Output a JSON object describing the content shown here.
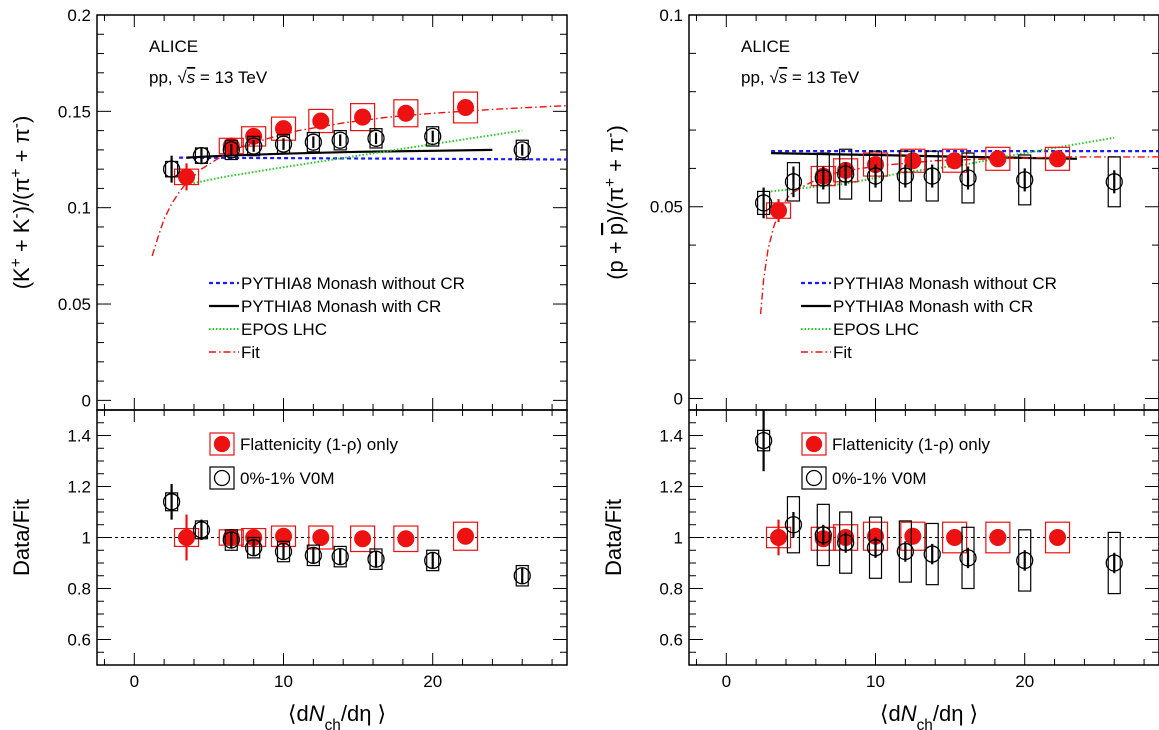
{
  "chart_data": [
    {
      "type": "scatter",
      "panel": "left",
      "experiment": "ALICE",
      "system": "pp,",
      "energy": "= 13 TeV",
      "top": {
        "ylabel": "(K⁺ + K⁻)/(π⁺ + π⁻)",
        "xlim": [
          -2.5,
          29
        ],
        "ylim": [
          -0.005,
          0.2
        ],
        "yticks": [
          0,
          0.05,
          0.1,
          0.15,
          0.2
        ],
        "ytick_labels": [
          "0",
          "0.05",
          "0.1",
          "0.15",
          "0.2"
        ],
        "series": [
          {
            "name": "Flattenicity (1-ρ) only",
            "kind": "red-points",
            "x": [
              3.5,
              6.5,
              8.0,
              10.0,
              12.5,
              15.3,
              18.2,
              22.2
            ],
            "y": [
              0.116,
              0.132,
              0.137,
              0.141,
              0.145,
              0.147,
              0.149,
              0.152
            ],
            "yerr": [
              0.007,
              0.003,
              0.002,
              0.002,
              0.002,
              0.002,
              0.002,
              0.002
            ],
            "ysys": [
              0.004,
              0.004,
              0.005,
              0.006,
              0.006,
              0.007,
              0.007,
              0.008
            ]
          },
          {
            "name": "0%-1% V0M",
            "kind": "open-circles",
            "x": [
              2.5,
              4.5,
              6.5,
              8.0,
              10.0,
              12.0,
              13.8,
              16.2,
              20.0,
              26.0
            ],
            "y": [
              0.12,
              0.127,
              0.13,
              0.132,
              0.133,
              0.134,
              0.135,
              0.136,
              0.137,
              0.13
            ],
            "yerr": [
              0.007,
              0.004,
              0.003,
              0.003,
              0.003,
              0.003,
              0.003,
              0.003,
              0.003,
              0.003
            ],
            "ysys": [
              0.004,
              0.004,
              0.005,
              0.005,
              0.005,
              0.005,
              0.005,
              0.005,
              0.005,
              0.005
            ]
          },
          {
            "name": "PYTHIA8 Monash without CR",
            "kind": "blue-dashed",
            "x": [
              3,
              29
            ],
            "y": [
              0.126,
              0.125
            ]
          },
          {
            "name": "PYTHIA8 Monash with CR",
            "kind": "black-solid",
            "x": [
              3.5,
              6,
              10,
              15,
              20,
              24
            ],
            "y": [
              0.126,
              0.127,
              0.128,
              0.129,
              0.1295,
              0.13
            ]
          },
          {
            "name": "EPOS LHC",
            "kind": "green-dotted",
            "x": [
              3.5,
              6,
              10,
              15,
              20,
              26
            ],
            "y": [
              0.112,
              0.116,
              0.121,
              0.127,
              0.133,
              0.14
            ]
          },
          {
            "name": "Fit",
            "kind": "red-dashdot",
            "x": [
              1.2,
              1.6,
              2.0,
              2.5,
              3.0,
              3.5,
              4.5,
              5.5,
              7,
              9,
              11,
              14,
              17,
              20,
              24,
              29
            ],
            "y": [
              0.075,
              0.085,
              0.094,
              0.102,
              0.108,
              0.113,
              0.12,
              0.125,
              0.131,
              0.136,
              0.14,
              0.144,
              0.147,
              0.149,
              0.151,
              0.153
            ]
          }
        ]
      },
      "bottom": {
        "ylabel": "Data/Fit",
        "xlabel": "⟨dN_ch/dη⟩",
        "xlim": [
          -2.5,
          29
        ],
        "ylim": [
          0.5,
          1.5
        ],
        "yticks": [
          0.6,
          0.8,
          1.0,
          1.2,
          1.4
        ],
        "ytick_labels": [
          "0.6",
          "0.8",
          "1",
          "1.2",
          "1.4"
        ],
        "xticks": [
          0,
          10,
          20
        ],
        "xtick_labels": [
          "0",
          "10",
          "20"
        ],
        "reference_line": 1.0,
        "series": [
          {
            "name": "Flattenicity (1-ρ) only",
            "kind": "red-points",
            "x": [
              3.5,
              6.5,
              8.0,
              10.0,
              12.5,
              15.3,
              18.2,
              22.2
            ],
            "y": [
              1.0,
              1.0,
              1.0,
              1.005,
              1.0,
              0.995,
              0.995,
              1.005
            ],
            "yerr": [
              0.09,
              0.02,
              0.02,
              0.02,
              0.02,
              0.02,
              0.02,
              0.02
            ],
            "ysys": [
              0.035,
              0.03,
              0.035,
              0.04,
              0.045,
              0.05,
              0.05,
              0.055
            ]
          },
          {
            "name": "0%-1% V0M",
            "kind": "open-circles",
            "x": [
              2.5,
              4.5,
              6.5,
              8.0,
              10.0,
              12.0,
              13.8,
              16.2,
              20.0,
              26.0
            ],
            "y": [
              1.14,
              1.03,
              0.99,
              0.96,
              0.945,
              0.93,
              0.925,
              0.915,
              0.91,
              0.85
            ],
            "yerr": [
              0.07,
              0.04,
              0.03,
              0.03,
              0.03,
              0.03,
              0.03,
              0.03,
              0.03,
              0.03
            ],
            "ysys": [
              0.035,
              0.035,
              0.04,
              0.04,
              0.04,
              0.04,
              0.04,
              0.04,
              0.04,
              0.04
            ]
          }
        ]
      },
      "legend_top": [
        "PYTHIA8 Monash without CR",
        "PYTHIA8 Monash with CR",
        "EPOS LHC",
        "Fit"
      ],
      "legend_bottom": [
        "Flattenicity (1-ρ) only",
        "0%-1% V0M"
      ]
    },
    {
      "type": "scatter",
      "panel": "right",
      "experiment": "ALICE",
      "system": "pp,",
      "energy": "= 13 TeV",
      "top": {
        "ylabel": "(p + p̅)/(π⁺ + π⁻)",
        "xlim": [
          -2.5,
          29
        ],
        "ylim": [
          -0.003,
          0.1
        ],
        "yticks": [
          0,
          0.05,
          0.1
        ],
        "ytick_labels": [
          "0",
          "0.05",
          "0.1"
        ],
        "series": [
          {
            "name": "Flattenicity (1-ρ) only",
            "kind": "red-points",
            "x": [
              3.5,
              6.5,
              8.0,
              10.0,
              12.5,
              15.3,
              18.2,
              22.2
            ],
            "y": [
              0.049,
              0.058,
              0.0595,
              0.061,
              0.062,
              0.062,
              0.0625,
              0.0625
            ],
            "yerr": [
              0.003,
              0.002,
              0.0015,
              0.0015,
              0.0015,
              0.0015,
              0.0015,
              0.0015
            ],
            "ysys": [
              0.002,
              0.0025,
              0.003,
              0.003,
              0.003,
              0.003,
              0.003,
              0.003
            ]
          },
          {
            "name": "0%-1% V0M",
            "kind": "open-circles",
            "x": [
              2.5,
              4.5,
              6.5,
              8.0,
              10.0,
              12.0,
              13.8,
              16.2,
              20.0,
              26.0
            ],
            "y": [
              0.051,
              0.0565,
              0.0575,
              0.0585,
              0.058,
              0.058,
              0.058,
              0.0575,
              0.057,
              0.0565
            ],
            "yerr": [
              0.004,
              0.004,
              0.003,
              0.003,
              0.003,
              0.003,
              0.003,
              0.003,
              0.003,
              0.003
            ],
            "ysys": [
              0.003,
              0.005,
              0.0065,
              0.0065,
              0.0065,
              0.0065,
              0.0065,
              0.0065,
              0.0065,
              0.0065
            ]
          },
          {
            "name": "PYTHIA8 Monash without CR",
            "kind": "blue-dashed",
            "x": [
              3,
              29
            ],
            "y": [
              0.0645,
              0.0645
            ]
          },
          {
            "name": "PYTHIA8 Monash with CR",
            "kind": "black-solid",
            "x": [
              3,
              10,
              16,
              23.5
            ],
            "y": [
              0.064,
              0.0635,
              0.063,
              0.0625
            ]
          },
          {
            "name": "EPOS LHC",
            "kind": "green-dotted",
            "x": [
              3,
              8,
              12,
              16,
              20,
              26
            ],
            "y": [
              0.054,
              0.056,
              0.059,
              0.061,
              0.064,
              0.068
            ]
          },
          {
            "name": "Fit",
            "kind": "red-dashdot",
            "x": [
              2.3,
              2.5,
              2.8,
              3.2,
              3.6,
              4.2,
              5.0,
              6,
              7.5,
              9,
              11,
              14,
              18,
              23,
              29
            ],
            "y": [
              0.022,
              0.031,
              0.039,
              0.045,
              0.049,
              0.053,
              0.055,
              0.057,
              0.059,
              0.06,
              0.061,
              0.062,
              0.0625,
              0.063,
              0.063
            ]
          }
        ]
      },
      "bottom": {
        "ylabel": "Data/Fit",
        "xlabel": "⟨dN_ch/dη⟩",
        "xlim": [
          -2.5,
          29
        ],
        "ylim": [
          0.5,
          1.5
        ],
        "yticks": [
          0.6,
          0.8,
          1.0,
          1.2,
          1.4
        ],
        "ytick_labels": [
          "0.6",
          "0.8",
          "1",
          "1.2",
          "1.4"
        ],
        "xticks": [
          0,
          10,
          20
        ],
        "xtick_labels": [
          "0",
          "10",
          "20"
        ],
        "reference_line": 1.0,
        "series": [
          {
            "name": "Flattenicity (1-ρ) only",
            "kind": "red-points",
            "x": [
              3.5,
              6.5,
              8.0,
              10.0,
              12.5,
              15.3,
              18.2,
              22.2
            ],
            "y": [
              1.0,
              0.995,
              1.0,
              1.005,
              1.005,
              1.0,
              1.0,
              1.0
            ],
            "yerr": [
              0.07,
              0.03,
              0.02,
              0.02,
              0.02,
              0.02,
              0.02,
              0.02
            ],
            "ysys": [
              0.04,
              0.045,
              0.05,
              0.055,
              0.055,
              0.06,
              0.06,
              0.06
            ]
          },
          {
            "name": "0%-1% V0M",
            "kind": "open-circles",
            "x": [
              2.5,
              4.5,
              6.5,
              8.0,
              10.0,
              12.0,
              13.8,
              16.2,
              20.0,
              26.0
            ],
            "y": [
              1.38,
              1.05,
              1.01,
              0.98,
              0.96,
              0.945,
              0.935,
              0.92,
              0.91,
              0.9
            ],
            "yerr": [
              0.12,
              0.05,
              0.04,
              0.04,
              0.04,
              0.04,
              0.04,
              0.04,
              0.04,
              0.04
            ],
            "ysys": [
              0.04,
              0.11,
              0.12,
              0.12,
              0.12,
              0.12,
              0.12,
              0.12,
              0.12,
              0.12
            ]
          }
        ]
      },
      "legend_top": [
        "PYTHIA8 Monash without CR",
        "PYTHIA8 Monash with CR",
        "EPOS LHC",
        "Fit"
      ],
      "legend_bottom": [
        "Flattenicity (1-ρ) only",
        "0%-1% V0M"
      ]
    }
  ],
  "colors": {
    "data_red": "#ee1111",
    "pythia_no_cr": "#1a1aff",
    "pythia_cr": "#000000",
    "epos": "#22cc22",
    "fit": "#ee1111"
  }
}
